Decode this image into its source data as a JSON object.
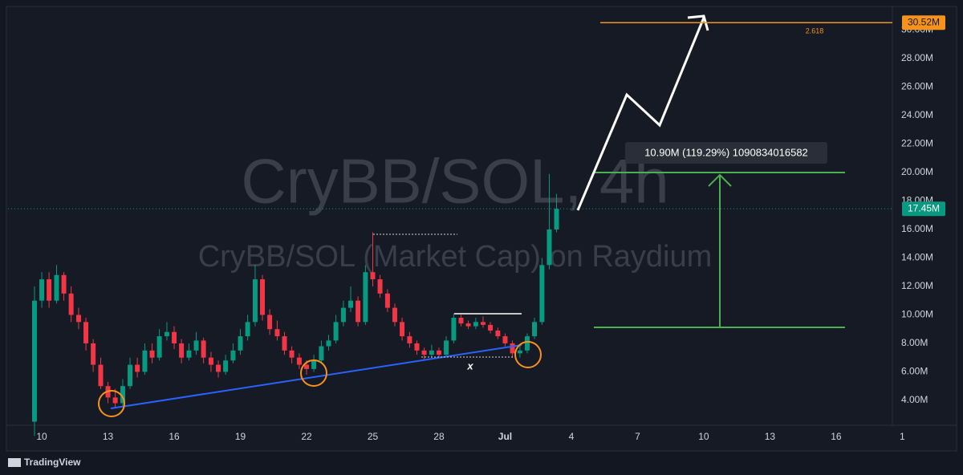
{
  "chart_data": {
    "type": "candlestick",
    "title": "CryBB/SOL, 4h",
    "subtitle": "CryBB/SOL (Market Cap) on Raydium",
    "x": [
      9.67,
      10,
      10.33,
      10.67,
      11,
      11.33,
      11.67,
      12,
      12.33,
      12.67,
      13,
      13.33,
      13.67,
      14,
      14.33,
      14.67,
      15,
      15.33,
      15.67,
      16,
      16.33,
      16.67,
      17,
      17.33,
      17.67,
      18,
      18.33,
      18.67,
      19,
      19.33,
      19.67,
      20,
      20.33,
      20.67,
      21,
      21.33,
      21.67,
      22,
      22.33,
      22.67,
      23,
      23.33,
      23.67,
      24,
      24.33,
      24.67,
      25,
      25.33,
      25.67,
      26,
      26.33,
      26.67,
      27,
      27.33,
      27.67,
      28,
      28.33,
      28.67,
      29,
      29.33,
      29.67,
      30,
      30.33,
      30.67,
      31,
      31.33,
      31.67,
      32,
      32.33,
      32.67,
      33,
      33.33
    ],
    "open": [
      2.5,
      11,
      12.5,
      11,
      12.8,
      11.5,
      10,
      9.5,
      8,
      6.5,
      5,
      4.2,
      3.8,
      5,
      6.5,
      6,
      7.5,
      7,
      8.5,
      8.8,
      8,
      7,
      7.5,
      8.2,
      7,
      6.5,
      6,
      6.8,
      7.5,
      8.5,
      9.5,
      12.5,
      10,
      9,
      8.5,
      7.5,
      7,
      6.5,
      6.2,
      6.8,
      7.8,
      8.2,
      9.5,
      10.5,
      11,
      9.5,
      13,
      12.5,
      11.5,
      10.5,
      9.5,
      8.5,
      8,
      7.5,
      7.2,
      7.5,
      7.2,
      8.2,
      9.8,
      9.4,
      9.2,
      9.5,
      9.3,
      8.9,
      8.5,
      8,
      7.3,
      7.5,
      8.5,
      9.5,
      13.5,
      16
    ],
    "high": [
      12,
      13,
      13,
      13.5,
      13,
      12,
      10.5,
      9.8,
      8.3,
      7,
      5.3,
      4.8,
      5.5,
      7,
      7,
      8,
      8,
      9,
      9.5,
      9.2,
      8.3,
      8,
      8.8,
      8.4,
      7.4,
      6.8,
      7.2,
      8,
      9,
      10,
      13.5,
      12.8,
      10.4,
      9.6,
      8.8,
      7.8,
      7.3,
      6.8,
      7.2,
      8.2,
      8.6,
      10,
      11,
      12,
      11.3,
      13.5,
      15.8,
      12.8,
      11.8,
      10.8,
      9.8,
      8.8,
      8.2,
      7.7,
      7.9,
      7.7,
      8.5,
      10.1,
      10,
      9.6,
      9.8,
      9.9,
      9.5,
      9.1,
      8.7,
      8.2,
      7.8,
      8.7,
      9.8,
      14,
      19.9,
      18.5
    ],
    "low": [
      1.5,
      10.5,
      10.5,
      10.8,
      11,
      9.5,
      9,
      7.5,
      6,
      4.8,
      3.8,
      3.5,
      3.6,
      4.8,
      5.6,
      5.8,
      6.6,
      6.8,
      8.2,
      7.6,
      6.6,
      6.8,
      7.2,
      6.6,
      6,
      5.6,
      5.8,
      6.6,
      7.2,
      8.2,
      9.2,
      9.6,
      8.6,
      8.2,
      7.2,
      6.6,
      6.2,
      5.8,
      6,
      6.6,
      7.5,
      8,
      9.2,
      10.2,
      9.2,
      9.3,
      12,
      11.2,
      10.2,
      9.2,
      8.2,
      7.7,
      7.2,
      6.9,
      7,
      7,
      7,
      8,
      9.2,
      9,
      9,
      9.1,
      8.7,
      8.3,
      7.8,
      7,
      7,
      7.3,
      8.3,
      9.3,
      13.2,
      15.8
    ],
    "close": [
      11,
      12.5,
      11,
      12.8,
      11.5,
      10,
      9.5,
      8,
      6.5,
      5,
      4.2,
      3.8,
      5,
      6.5,
      6,
      7.5,
      7,
      8.5,
      8.8,
      8,
      7,
      7.5,
      8.2,
      7,
      6.5,
      6,
      6.8,
      7.5,
      8.5,
      9.5,
      12.5,
      10,
      9,
      8.5,
      7.5,
      7,
      6.5,
      6.2,
      6.8,
      7.8,
      8.2,
      9.5,
      10.5,
      11,
      9.5,
      13,
      12.5,
      11.5,
      10.5,
      9.5,
      8.5,
      8,
      7.5,
      7.2,
      7.5,
      7.2,
      8.2,
      9.8,
      9.4,
      9.2,
      9.5,
      9.3,
      8.9,
      8.5,
      8,
      7.3,
      7.5,
      8.5,
      9.5,
      13.5,
      16,
      17.45
    ],
    "up_color": "#089981",
    "down_color": "#f23645",
    "xlim": [
      8.47,
      48.55
    ],
    "xticks": [
      10,
      13,
      16,
      19,
      22,
      25,
      28,
      {
        "value": 31,
        "label": "Jul"
      },
      {
        "value": 34,
        "label": "4"
      },
      {
        "value": 37,
        "label": "7"
      },
      {
        "value": 40,
        "label": "10"
      },
      {
        "value": 43,
        "label": "13"
      },
      {
        "value": 46,
        "label": "16"
      },
      {
        "value": 49,
        "label": "1"
      }
    ],
    "ylim": [
      2.25,
      31.55
    ],
    "yticks": [
      {
        "value": 4,
        "label": "4.00M"
      },
      {
        "value": 6,
        "label": "6.00M"
      },
      {
        "value": 8,
        "label": "8.00M"
      },
      {
        "value": 10,
        "label": "10.00M"
      },
      {
        "value": 12,
        "label": "12.00M"
      },
      {
        "value": 14,
        "label": "14.00M"
      },
      {
        "value": 16,
        "label": "16.00M"
      },
      {
        "value": 18,
        "label": "18.00M"
      },
      {
        "value": 20,
        "label": "20.00M"
      },
      {
        "value": 22,
        "label": "22.00M"
      },
      {
        "value": 24,
        "label": "24.00M"
      },
      {
        "value": 26,
        "label": "26.00M"
      },
      {
        "value": 28,
        "label": "28.00M"
      },
      {
        "value": 30,
        "label": "30.00M"
      }
    ],
    "price_labels": [
      {
        "value": 30.52,
        "label": "30.52M",
        "color": "#f7931a"
      },
      {
        "value": 17.45,
        "label": "17.45M",
        "color": "#089981"
      }
    ],
    "annotations": {
      "fib_level": "2.618",
      "measure": "10.90M (119.29%) 1090834016582",
      "marker": "x"
    },
    "branding": "TradingView",
    "grid": false
  }
}
